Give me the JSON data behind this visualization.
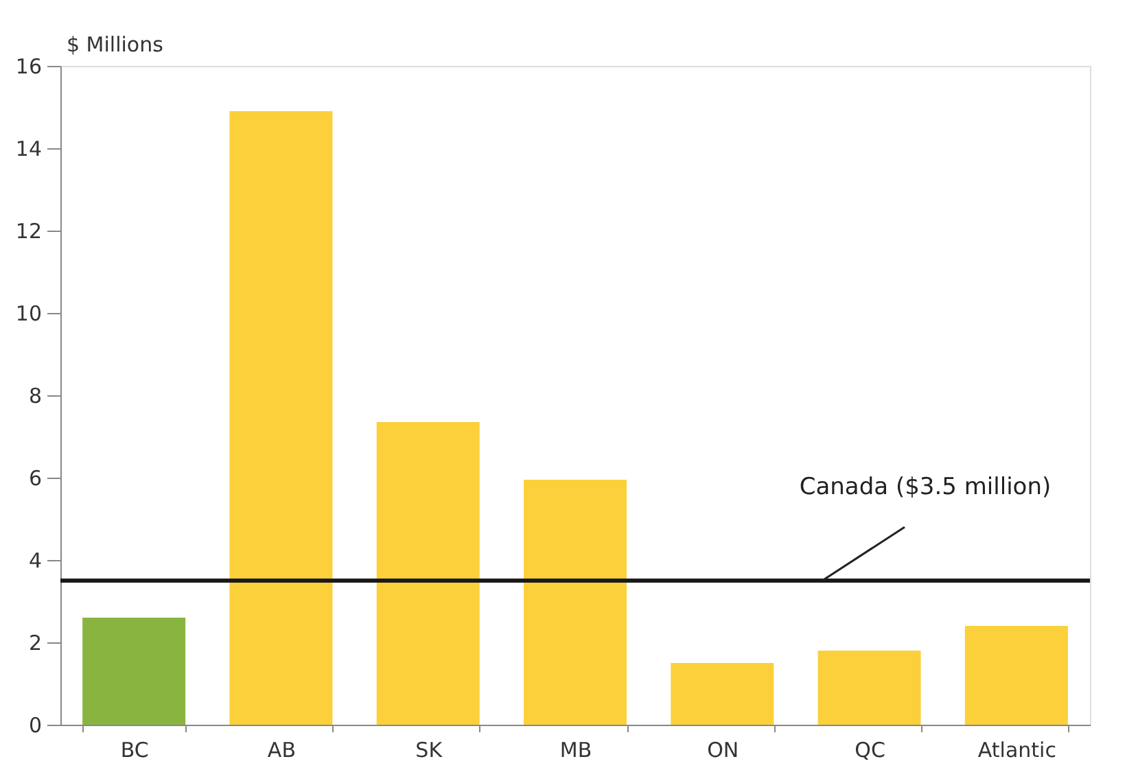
{
  "chart_data": {
    "type": "bar",
    "ylabel": "$ Millions",
    "categories": [
      "BC",
      "AB",
      "SK",
      "MB",
      "ON",
      "QC",
      "Atlantic"
    ],
    "values": [
      2.6,
      14.9,
      7.35,
      5.95,
      1.5,
      1.8,
      2.4
    ],
    "colors": [
      "#8ab440",
      "#fcd03a",
      "#fcd03a",
      "#fcd03a",
      "#fcd03a",
      "#fcd03a",
      "#fcd03a"
    ],
    "ylim": [
      0,
      16
    ],
    "yticks": [
      0,
      2,
      4,
      6,
      8,
      10,
      12,
      14,
      16
    ],
    "grid": false,
    "ref_lines": [
      {
        "axis": "y",
        "value": 3.5,
        "label": "Canada ($3.5 million)",
        "color": "#1a1a1a"
      }
    ]
  }
}
